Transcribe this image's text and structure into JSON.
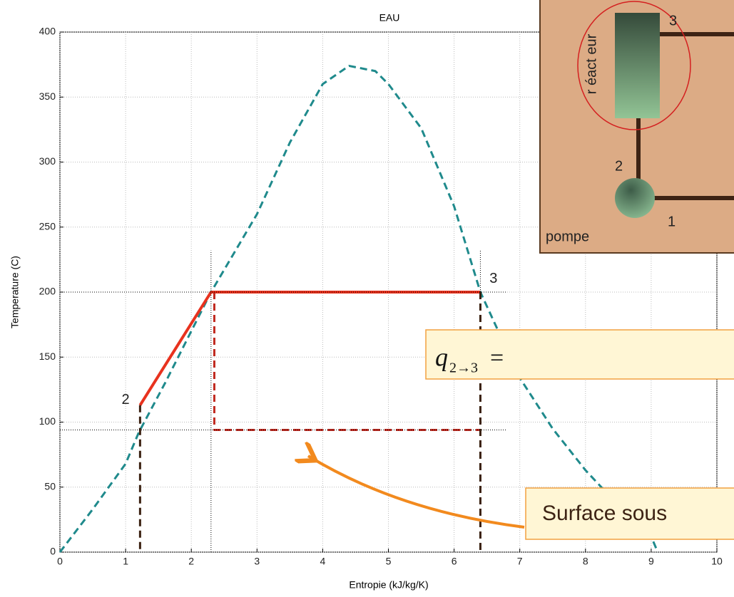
{
  "chart_data": {
    "type": "line",
    "title": "EAU",
    "x_label": "Entropie (kJ/kg/K)",
    "y_label": "Temperature (C)",
    "xlim": [
      0,
      10
    ],
    "ylim": [
      0,
      400
    ],
    "xticks": [
      0,
      1,
      2,
      3,
      4,
      5,
      6,
      7,
      8,
      9,
      10
    ],
    "yticks": [
      0,
      50,
      100,
      150,
      200,
      250,
      300,
      350,
      400
    ],
    "grid": true,
    "series": [
      {
        "color": "#1f8a8c",
        "style": "dashed",
        "x": [
          0,
          0.5,
          1,
          1.2,
          1.6,
          2.3,
          3,
          3.5,
          4,
          4.4,
          4.8,
          5,
          5.5,
          6,
          6.4,
          7,
          7.5,
          8,
          8.5,
          9,
          9.1
        ],
        "values": [
          0,
          33,
          68,
          92,
          130,
          200,
          260,
          315,
          360,
          374,
          370,
          360,
          326,
          266,
          200,
          134,
          95,
          63,
          36,
          12,
          0
        ]
      },
      {
        "color": "#e8321e",
        "style": "solid",
        "x": [
          1.22,
          2.3,
          6.4
        ],
        "values": [
          113,
          200,
          200
        ]
      },
      {
        "color": "#c0281e",
        "style": "dashed",
        "x": [
          2.35,
          2.35,
          6.4
        ],
        "values": [
          200,
          94,
          94
        ]
      },
      {
        "color": "#3a2010",
        "style": "dashed",
        "x": [
          1.22,
          1.22
        ],
        "values": [
          113,
          0
        ]
      },
      {
        "color": "#3a2010",
        "style": "dashed",
        "x": [
          6.4,
          6.4
        ],
        "values": [
          200,
          0
        ]
      },
      {
        "color": "#000000",
        "style": "dotted",
        "x": [
          0,
          6.8
        ],
        "values": [
          200,
          200
        ]
      },
      {
        "color": "#000000",
        "style": "dotted",
        "x": [
          0,
          6.8
        ],
        "values": [
          94,
          94
        ]
      },
      {
        "color": "#000000",
        "style": "dotted",
        "x": [
          2.3,
          2.3
        ],
        "values": [
          0,
          232
        ]
      },
      {
        "color": "#000000",
        "style": "dotted",
        "x": [
          6.4,
          6.4
        ],
        "values": [
          200,
          232
        ]
      }
    ],
    "annotations": [
      {
        "text": "2",
        "x": 1.0,
        "y": 117
      },
      {
        "text": "3",
        "x": 6.6,
        "y": 210
      }
    ]
  },
  "inset": {
    "reactor": "r éact eur",
    "point3": "3",
    "point2": "2",
    "point1": "1",
    "pump": "pompe"
  },
  "formula": {
    "symbol": "q",
    "subscript": "2→3",
    "operator": "="
  },
  "callout": "Surface sous"
}
